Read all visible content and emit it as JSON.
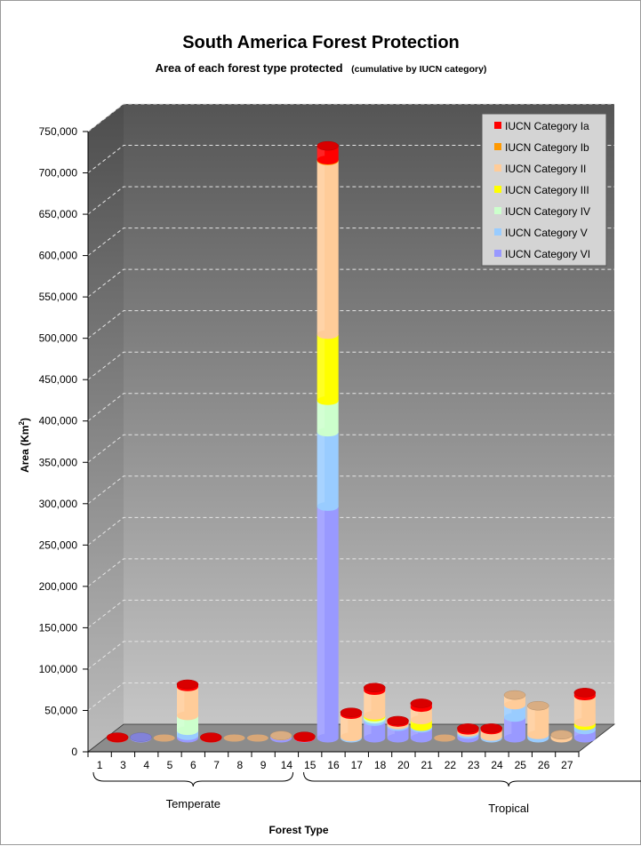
{
  "chart_data": {
    "type": "bar",
    "stacked": true,
    "three_d": true,
    "title": "South America Forest Protection",
    "subtitle": "Area of each forest type protected",
    "subtitle_note": "(cumulative by IUCN category)",
    "xlabel": "Forest Type",
    "ylabel": "Area (Km",
    "ylabel_superscript": "2",
    "ylabel_suffix": ")",
    "ylim": [
      0,
      750000
    ],
    "y_ticks": [
      "0",
      "50,000",
      "100,000",
      "150,000",
      "200,000",
      "250,000",
      "300,000",
      "350,000",
      "400,000",
      "450,000",
      "500,000",
      "550,000",
      "600,000",
      "650,000",
      "700,000",
      "750,000"
    ],
    "grid": true,
    "legend_position": "top-right",
    "groups": [
      {
        "label": "Temperate",
        "from": 0,
        "to": 8
      },
      {
        "label": "Tropical",
        "from": 9,
        "to": 26
      }
    ],
    "categories": [
      "1",
      "3",
      "4",
      "5",
      "6",
      "7",
      "8",
      "9",
      "14",
      "15",
      "16",
      "17",
      "18",
      "20",
      "21",
      "22",
      "23",
      "24",
      "25",
      "26",
      "27"
    ],
    "series": [
      {
        "name": "IUCN Category Ia",
        "color": "#ff0000",
        "values": [
          1000,
          0,
          0,
          3000,
          1000,
          0,
          0,
          0,
          1500,
          17000,
          2500,
          3500,
          2000,
          5000,
          0,
          2500,
          2000,
          0,
          0,
          0,
          4000
        ]
      },
      {
        "name": "IUCN Category Ib",
        "color": "#ff9900",
        "values": [
          0,
          0,
          0,
          0,
          0,
          0,
          0,
          0,
          0,
          1000,
          0,
          0,
          0,
          0,
          0,
          0,
          0,
          0,
          0,
          0,
          0
        ]
      },
      {
        "name": "IUCN Category II",
        "color": "#ffcc99",
        "values": [
          0,
          0,
          0,
          35000,
          0,
          0,
          0,
          500,
          0,
          210000,
          27000,
          30000,
          3000,
          15000,
          0,
          2500,
          8000,
          12000,
          35000,
          4000,
          32000
        ]
      },
      {
        "name": "IUCN Category III",
        "color": "#ffff00",
        "values": [
          0,
          0,
          0,
          0,
          0,
          0,
          0,
          0,
          0,
          80000,
          0,
          2000,
          0,
          8000,
          0,
          0,
          0,
          0,
          0,
          0,
          4000
        ]
      },
      {
        "name": "IUCN Category IV",
        "color": "#ccffcc",
        "values": [
          0,
          0,
          0,
          18000,
          0,
          0,
          0,
          0,
          0,
          38000,
          0,
          2500,
          0,
          0,
          0,
          0,
          0,
          0,
          0,
          0,
          0
        ]
      },
      {
        "name": "IUCN Category V",
        "color": "#99ccff",
        "values": [
          0,
          0,
          0,
          6000,
          0,
          0,
          0,
          0,
          0,
          90000,
          1500,
          3000,
          2000,
          2000,
          0,
          2500,
          2000,
          15000,
          4000,
          0,
          5000
        ]
      },
      {
        "name": "IUCN Category VI",
        "color": "#9999ff",
        "values": [
          0,
          1000,
          0,
          3000,
          0,
          0,
          0,
          2500,
          500,
          280000,
          0,
          20000,
          14000,
          12000,
          0,
          4500,
          0,
          25000,
          0,
          0,
          10000
        ]
      }
    ]
  }
}
